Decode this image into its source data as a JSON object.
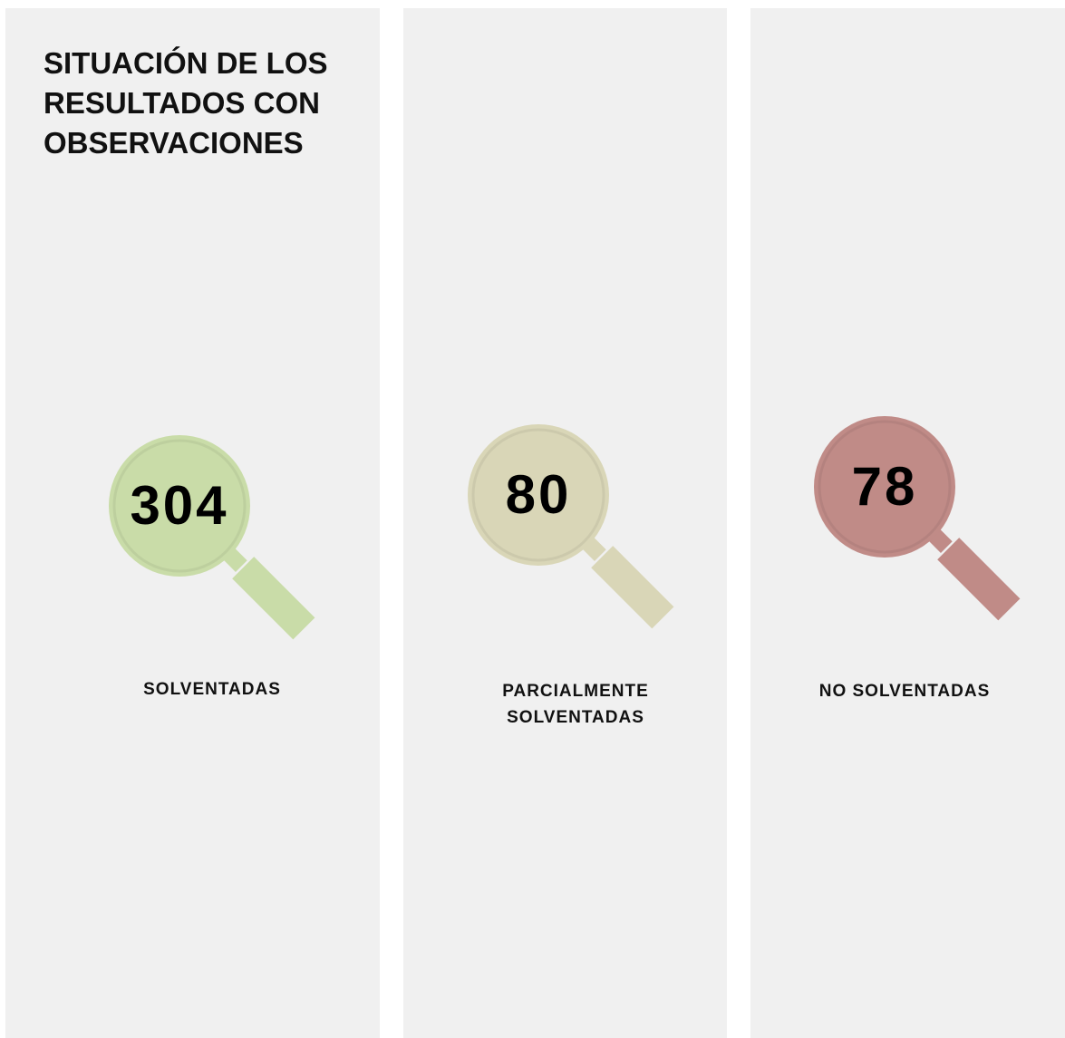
{
  "header": {
    "title": "SITUACIÓN DE LOS RESULTADOS CON OBSERVACIONES"
  },
  "items": [
    {
      "value": 304,
      "label": "SOLVENTADAS",
      "color": "#c9dca8"
    },
    {
      "value": 80,
      "label": "PARCIALMENTE SOLVENTADAS",
      "color": "#d9d6b7"
    },
    {
      "value": 78,
      "label": "NO SOLVENTADAS",
      "color": "#c08b87"
    }
  ]
}
